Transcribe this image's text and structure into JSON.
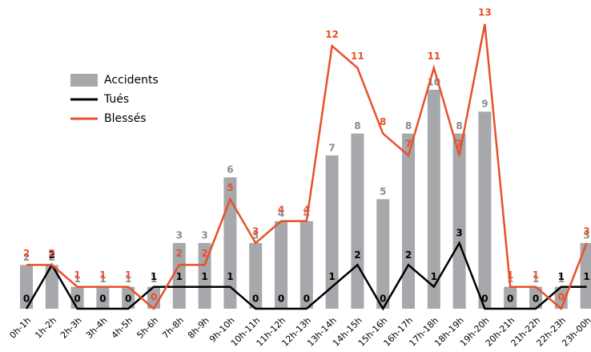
{
  "chart_data": {
    "type": "bar-line",
    "categories": [
      "0h-1h",
      "1h-2h",
      "2h-3h",
      "3h-4h",
      "4h-5h",
      "5h-6h",
      "7h-8h",
      "8h-9h",
      "9h-10h",
      "10h-11h",
      "11h-12h",
      "12h-13h",
      "13h-14h",
      "14h-15h",
      "15h-16h",
      "16h-17h",
      "17h-18h",
      "18h-19h",
      "19h-20h",
      "20h-21h",
      "21h-22h",
      "22h-23h",
      "23h-00h"
    ],
    "series": [
      {
        "name": "Accidents",
        "color": "#a6a8ab",
        "kind": "bar",
        "values": [
          2,
          2,
          1,
          1,
          1,
          1,
          3,
          3,
          6,
          3,
          4,
          4,
          7,
          8,
          5,
          8,
          10,
          8,
          9,
          1,
          1,
          1,
          3
        ]
      },
      {
        "name": "Tués",
        "color": "#000000",
        "kind": "line",
        "values": [
          0,
          2,
          0,
          0,
          0,
          1,
          1,
          1,
          1,
          0,
          0,
          0,
          1,
          2,
          0,
          2,
          1,
          3,
          0,
          0,
          0,
          1,
          1
        ]
      },
      {
        "name": "Blessés",
        "color": "#e8512a",
        "kind": "line",
        "values": [
          2,
          2,
          1,
          1,
          1,
          0,
          2,
          2,
          5,
          3,
          4,
          4,
          12,
          11,
          8,
          7,
          11,
          7,
          13,
          1,
          1,
          0,
          3
        ]
      }
    ],
    "ylim": [
      0,
      13
    ],
    "grid": false,
    "legend": "upper-left"
  }
}
